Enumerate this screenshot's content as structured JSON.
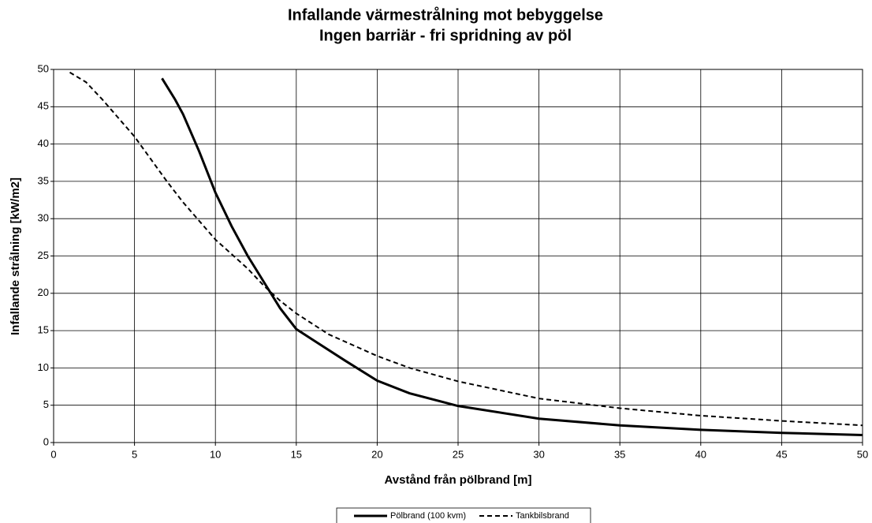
{
  "chart_data": {
    "type": "line",
    "title": "Infallande värmestrålning mot bebyggelse",
    "subtitle": "Ingen barriär - fri spridning av pöl",
    "x_label": "Avstånd från pölbrand [m]",
    "y_label": "Infallande strålning [kW/m2]",
    "xlim": [
      0,
      50
    ],
    "xticks": [
      0,
      5,
      10,
      15,
      20,
      25,
      30,
      35,
      40,
      45,
      50
    ],
    "ylim": [
      0,
      50
    ],
    "yticks": [
      0,
      5,
      10,
      15,
      20,
      25,
      30,
      35,
      40,
      45,
      50
    ],
    "grid": true,
    "legend": "bottom",
    "series": [
      {
        "name": "Pölbrand (100 kvm)",
        "color": "#000000",
        "linestyle": "solid",
        "x": [
          6.7,
          7.5,
          8,
          9,
          10,
          11,
          12,
          13,
          14,
          15,
          16,
          18,
          20,
          22,
          25,
          30,
          35,
          40,
          45,
          50
        ],
        "values": [
          48.8,
          46,
          44,
          39,
          33.5,
          29,
          25,
          21.5,
          18,
          15.2,
          13.8,
          11,
          8.3,
          6.6,
          4.9,
          3.2,
          2.3,
          1.7,
          1.3,
          1.0
        ]
      },
      {
        "name": "Tankbilsbrand",
        "color": "#000000",
        "linestyle": "dashed",
        "x": [
          1,
          2,
          3,
          4,
          5,
          6,
          7,
          8,
          9,
          10,
          12,
          13,
          14,
          15,
          17,
          20,
          22,
          25,
          30,
          35,
          40,
          45,
          50
        ],
        "values": [
          49.6,
          48.3,
          46,
          43.5,
          41,
          38,
          35,
          32.2,
          29.7,
          27.2,
          23.3,
          21,
          19,
          17.3,
          14.5,
          11.6,
          10,
          8.2,
          5.9,
          4.6,
          3.6,
          2.9,
          2.3
        ]
      }
    ]
  }
}
